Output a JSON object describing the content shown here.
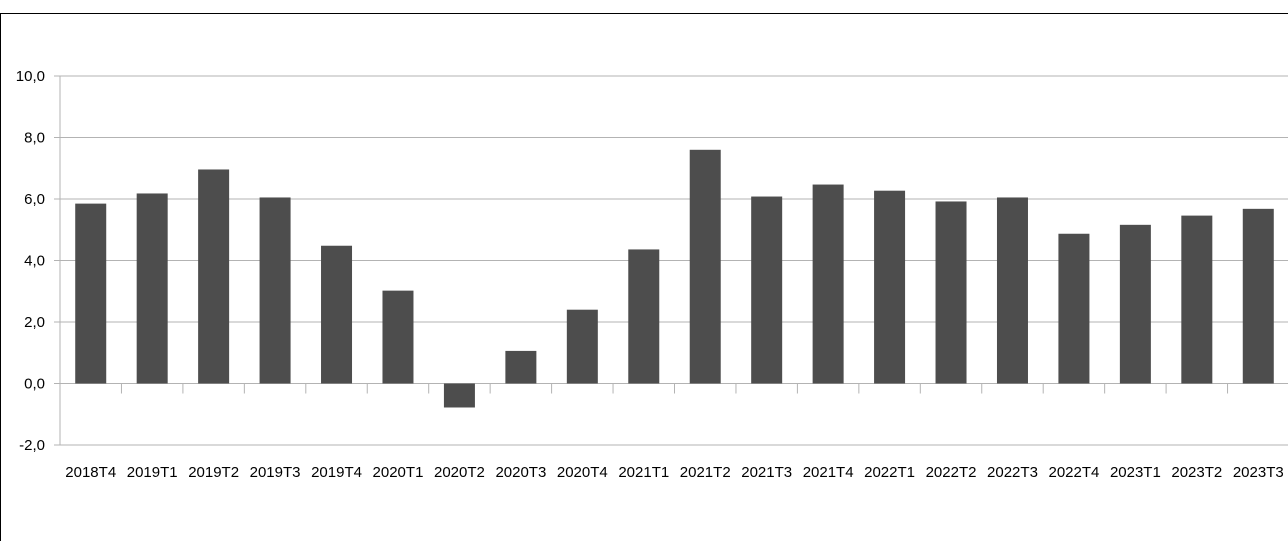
{
  "chart_data": {
    "type": "bar",
    "title": "",
    "xlabel": "",
    "ylabel": "",
    "categories": [
      "2018T4",
      "2019T1",
      "2019T2",
      "2019T3",
      "2019T4",
      "2020T1",
      "2020T2",
      "2020T3",
      "2020T4",
      "2021T1",
      "2021T2",
      "2021T3",
      "2021T4",
      "2022T1",
      "2022T2",
      "2022T3",
      "2022T4",
      "2023T1",
      "2023T2",
      "2023T3"
    ],
    "series": [
      {
        "values": [
          5.85,
          6.18,
          6.96,
          6.05,
          4.48,
          3.02,
          -0.78,
          1.06,
          2.4,
          4.36,
          7.6,
          6.08,
          6.47,
          6.27,
          5.92,
          6.05,
          4.87,
          5.16,
          5.46,
          5.68
        ]
      }
    ],
    "ylim": [
      -2,
      10
    ],
    "yticks": [
      -2,
      0,
      2,
      4,
      6,
      8,
      10
    ],
    "ytick_labels": [
      "-2,0",
      "0,0",
      "2,0",
      "4,0",
      "6,0",
      "8,0",
      "10,0"
    ],
    "grid": true,
    "bar_color": "#4d4d4d",
    "grid_color": "#b3b3b3"
  }
}
